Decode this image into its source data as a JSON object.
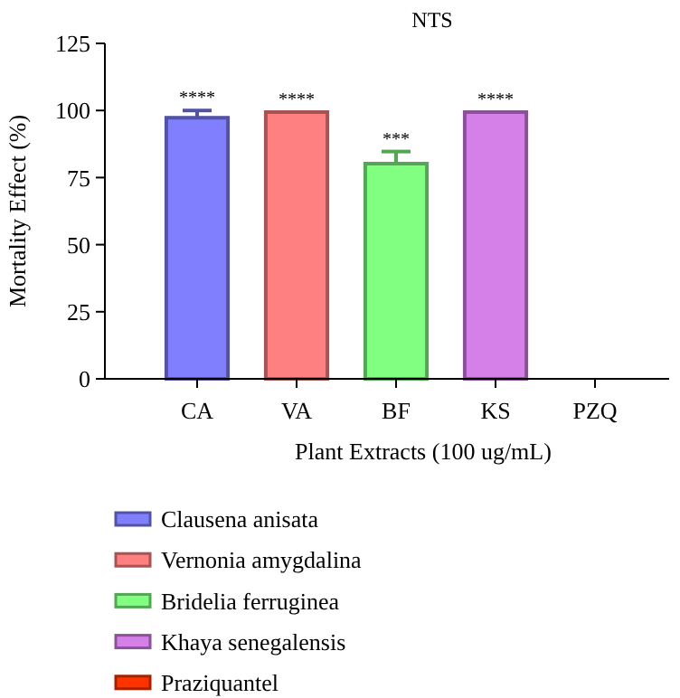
{
  "chart_data": {
    "type": "bar",
    "title": "NTS",
    "xlabel": "Plant Extracts (100 ug/mL)",
    "ylabel": "Mortality Effect (%)",
    "categories": [
      "CA",
      "VA",
      "BF",
      "KS",
      "PZQ"
    ],
    "series": [
      {
        "name": "Clausena anisata",
        "color": "#8080ff",
        "values": [
          97.3,
          null,
          null,
          null,
          null
        ],
        "errors": [
          2.7,
          null,
          null,
          null,
          null
        ]
      },
      {
        "name": "Vernonia amygdalina",
        "color": "#ff8080",
        "values": [
          null,
          99.4,
          null,
          null,
          null
        ]
      },
      {
        "name": "Bridelia ferruginea",
        "color": "#80ff80",
        "values": [
          null,
          null,
          80.2,
          null,
          null
        ],
        "errors": [
          null,
          null,
          4.5,
          null,
          null
        ]
      },
      {
        "name": "Khaya senegalensis",
        "color": "#d580e8",
        "values": [
          null,
          null,
          null,
          99.4,
          null
        ]
      },
      {
        "name": "Praziquantel",
        "color": "#ff3300",
        "values": [
          null,
          null,
          null,
          null,
          0
        ]
      }
    ],
    "ylim": [
      0,
      125
    ],
    "yticks": [
      0,
      25,
      50,
      75,
      100,
      125
    ],
    "legend": "bottom",
    "annotations": [
      {
        "text": "****",
        "x": "CA",
        "y": 100
      },
      {
        "text": "****",
        "x": "VA",
        "y": 99.4
      },
      {
        "text": "***",
        "x": "BF",
        "y": 84.7
      },
      {
        "text": "****",
        "x": "KS",
        "y": 99.4
      }
    ]
  }
}
